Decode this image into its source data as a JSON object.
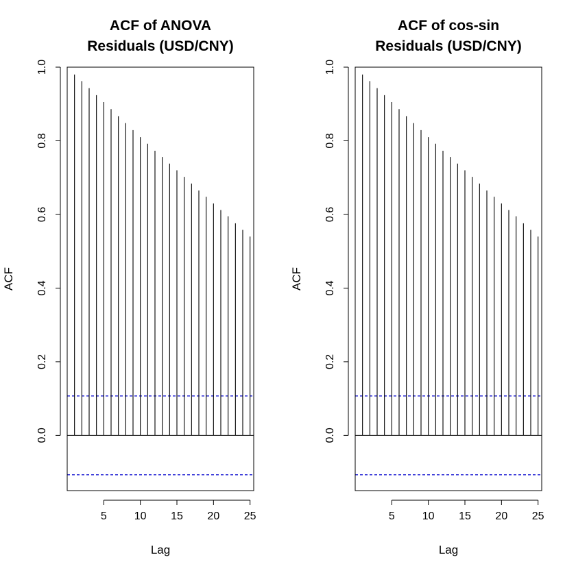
{
  "chart_data": [
    {
      "type": "bar",
      "title_lines": [
        "ACF of ANOVA",
        "Residuals (USD/CNY)"
      ],
      "xlabel": "Lag",
      "ylabel": "ACF",
      "xlim": [
        0,
        25.5
      ],
      "ylim": [
        -0.15,
        1.0
      ],
      "x_ticks": [
        5,
        10,
        15,
        20,
        25
      ],
      "y_ticks": [
        0.0,
        0.2,
        0.4,
        0.6,
        0.8,
        1.0
      ],
      "x_tick_labels": [
        "5",
        "10",
        "15",
        "20",
        "25"
      ],
      "y_tick_labels": [
        "0.0",
        "0.2",
        "0.4",
        "0.6",
        "0.8",
        "1.0"
      ],
      "lags": [
        1,
        2,
        3,
        4,
        5,
        6,
        7,
        8,
        9,
        10,
        11,
        12,
        13,
        14,
        15,
        16,
        17,
        18,
        19,
        20,
        21,
        22,
        23,
        24,
        25
      ],
      "values": [
        0.98,
        0.962,
        0.943,
        0.924,
        0.905,
        0.886,
        0.867,
        0.848,
        0.829,
        0.81,
        0.792,
        0.773,
        0.756,
        0.738,
        0.72,
        0.702,
        0.684,
        0.665,
        0.648,
        0.63,
        0.612,
        0.595,
        0.576,
        0.558,
        0.54
      ],
      "confidence_limits": [
        0.107,
        -0.107
      ],
      "bar_color": "#000000",
      "confidence_color": "#0000cd"
    },
    {
      "type": "bar",
      "title_lines": [
        "ACF of cos-sin",
        "Residuals (USD/CNY)"
      ],
      "xlabel": "Lag",
      "ylabel": "ACF",
      "xlim": [
        0,
        25.5
      ],
      "ylim": [
        -0.15,
        1.0
      ],
      "x_ticks": [
        5,
        10,
        15,
        20,
        25
      ],
      "y_ticks": [
        0.0,
        0.2,
        0.4,
        0.6,
        0.8,
        1.0
      ],
      "x_tick_labels": [
        "5",
        "10",
        "15",
        "20",
        "25"
      ],
      "y_tick_labels": [
        "0.0",
        "0.2",
        "0.4",
        "0.6",
        "0.8",
        "1.0"
      ],
      "lags": [
        1,
        2,
        3,
        4,
        5,
        6,
        7,
        8,
        9,
        10,
        11,
        12,
        13,
        14,
        15,
        16,
        17,
        18,
        19,
        20,
        21,
        22,
        23,
        24,
        25
      ],
      "values": [
        0.98,
        0.962,
        0.943,
        0.924,
        0.905,
        0.886,
        0.867,
        0.848,
        0.829,
        0.81,
        0.792,
        0.773,
        0.756,
        0.738,
        0.72,
        0.702,
        0.684,
        0.665,
        0.648,
        0.63,
        0.612,
        0.595,
        0.576,
        0.558,
        0.54
      ],
      "confidence_limits": [
        0.107,
        -0.107
      ],
      "bar_color": "#000000",
      "confidence_color": "#0000cd"
    }
  ]
}
